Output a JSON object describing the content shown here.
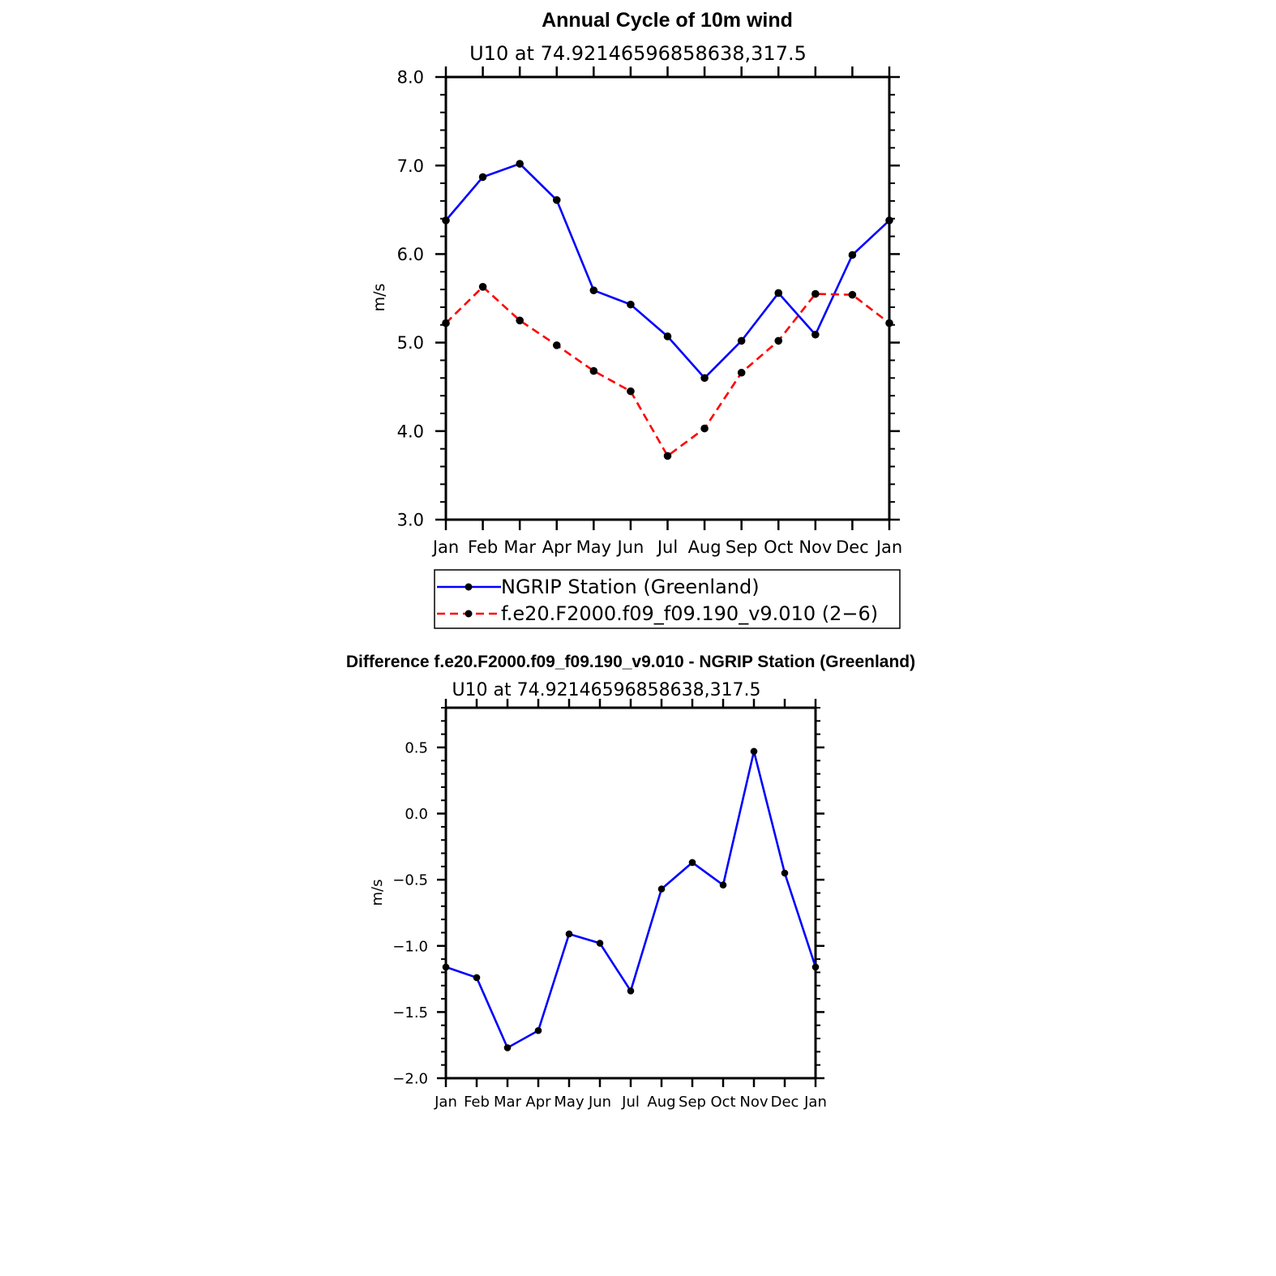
{
  "chart_data": [
    {
      "type": "line",
      "title": "Annual Cycle of 10m wind",
      "subtitle": "U10  at  74.92146596858638,317.5",
      "xlabel": "",
      "ylabel": "m/s",
      "categories": [
        "Jan",
        "Feb",
        "Mar",
        "Apr",
        "May",
        "Jun",
        "Jul",
        "Aug",
        "Sep",
        "Oct",
        "Nov",
        "Dec",
        "Jan"
      ],
      "ylim": [
        3.0,
        8.0
      ],
      "yticks": [
        "3.0",
        "4.0",
        "5.0",
        "6.0",
        "7.0",
        "8.0"
      ],
      "ytick_values": [
        3.0,
        4.0,
        5.0,
        6.0,
        7.0,
        8.0
      ],
      "grid": false,
      "legend_position": "bottom",
      "series": [
        {
          "name": "NGRIP Station (Greenland)",
          "color": "#0000ff",
          "dash": "solid",
          "values": [
            6.38,
            6.87,
            7.02,
            6.61,
            5.59,
            5.43,
            5.07,
            4.6,
            5.02,
            5.56,
            5.09,
            5.99,
            6.38
          ]
        },
        {
          "name": "f.e20.F2000.f09_f09.190_v9.010 (2−6)",
          "color": "#ff0000",
          "dash": "dashed",
          "values": [
            5.22,
            5.63,
            5.25,
            4.97,
            4.68,
            4.45,
            3.72,
            4.03,
            4.66,
            5.02,
            5.55,
            5.54,
            5.22
          ]
        }
      ]
    },
    {
      "type": "line",
      "title": "Difference f.e20.F2000.f09_f09.190_v9.010 - NGRIP Station (Greenland)",
      "subtitle": "U10  at  74.92146596858638,317.5",
      "xlabel": "",
      "ylabel": "m/s",
      "categories": [
        "Jan",
        "Feb",
        "Mar",
        "Apr",
        "May",
        "Jun",
        "Jul",
        "Aug",
        "Sep",
        "Oct",
        "Nov",
        "Dec",
        "Jan"
      ],
      "ylim": [
        -2.0,
        0.8
      ],
      "yticks": [
        "−2.0",
        "−1.5",
        "−1.0",
        "−0.5",
        "0.0",
        "0.5"
      ],
      "ytick_values": [
        -2.0,
        -1.5,
        -1.0,
        -0.5,
        0.0,
        0.5
      ],
      "grid": false,
      "series": [
        {
          "name": "Difference",
          "color": "#0000ff",
          "dash": "solid",
          "values": [
            -1.16,
            -1.24,
            -1.77,
            -1.64,
            -0.91,
            -0.98,
            -1.34,
            -0.57,
            -0.37,
            -0.54,
            0.47,
            -0.45,
            -1.16
          ]
        }
      ]
    }
  ]
}
